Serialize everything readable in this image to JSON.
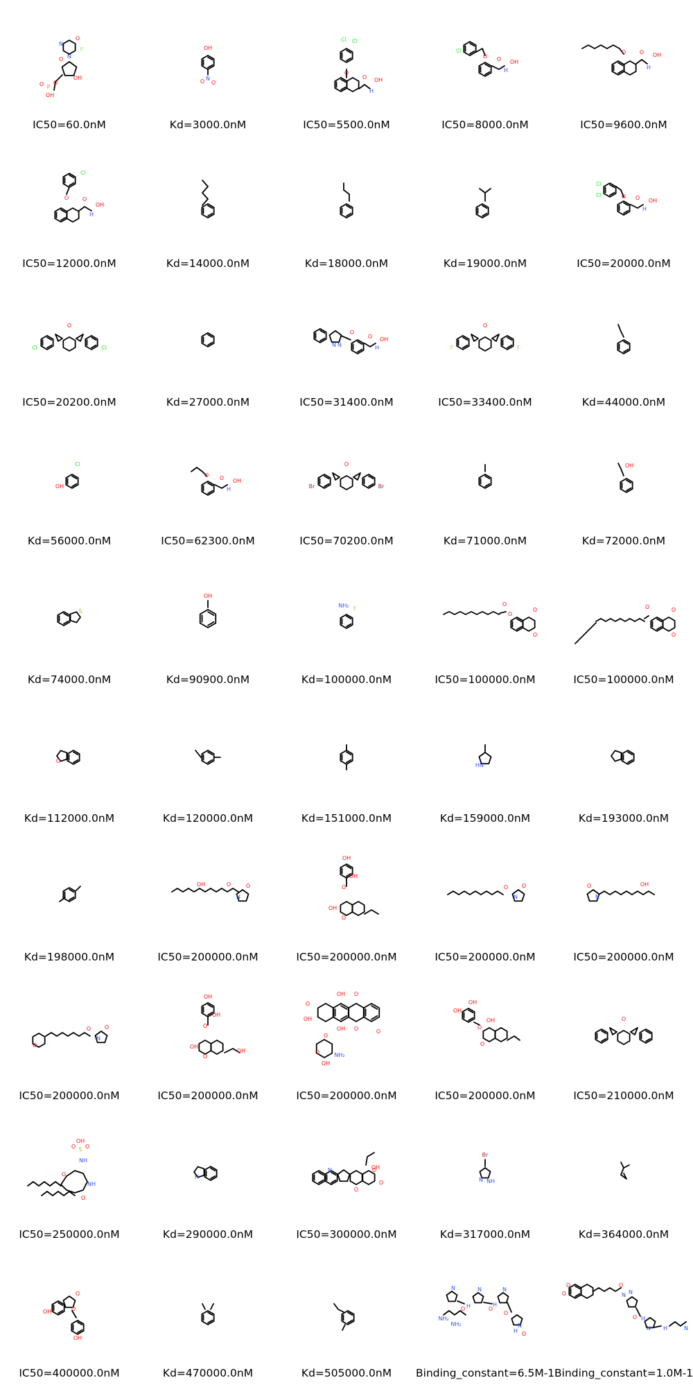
{
  "colors": {
    "oxygen": "#ff0d0d",
    "nitrogen": "#3050f8",
    "chlorine": "#1ff01f",
    "fluorine": "#90e050",
    "bromine": "#a62929",
    "sulfur": "#c8b400",
    "phosphorus": "#ff8000"
  },
  "cells": [
    {
      "label": "IC50=60.0nM",
      "mol": "nucleoside"
    },
    {
      "label": "Kd=3000.0nM",
      "mol": "nitrophenol"
    },
    {
      "label": "IC50=5500.0nM",
      "mol": "naphthyl_hydroxamate_dichloro"
    },
    {
      "label": "IC50=8000.0nM",
      "mol": "benzyl_hydroxamate_chloro"
    },
    {
      "label": "IC50=9600.0nM",
      "mol": "naphthyl_hydroxamate_hexyl"
    },
    {
      "label": "IC50=12000.0nM",
      "mol": "naphthyl_hydroxamate_chloro"
    },
    {
      "label": "Kd=14000.0nM",
      "mol": "butylbenzene"
    },
    {
      "label": "Kd=18000.0nM",
      "mol": "propylbenzene"
    },
    {
      "label": "Kd=19000.0nM",
      "mol": "isobutylbenzene"
    },
    {
      "label": "IC50=20000.0nM",
      "mol": "benzyl_hydroxamate_dichloro"
    },
    {
      "label": "IC50=20200.0nM",
      "mol": "bis_cyclopropyl_chloro"
    },
    {
      "label": "Kd=27000.0nM",
      "mol": "benzene"
    },
    {
      "label": "IC50=31400.0nM",
      "mol": "pyrazole_hydroxamate"
    },
    {
      "label": "IC50=33400.0nM",
      "mol": "bis_cyclopropyl_fluoro"
    },
    {
      "label": "Kd=44000.0nM",
      "mol": "ethylbenzene"
    },
    {
      "label": "Kd=56000.0nM",
      "mol": "chlorophenol"
    },
    {
      "label": "IC50=62300.0nM",
      "mol": "allyl_hydroxamate"
    },
    {
      "label": "IC50=70200.0nM",
      "mol": "bis_cyclopropyl_bromo"
    },
    {
      "label": "Kd=71000.0nM",
      "mol": "toluene"
    },
    {
      "label": "Kd=72000.0nM",
      "mol": "allylphenol"
    },
    {
      "label": "Kd=74000.0nM",
      "mol": "benzothiophene"
    },
    {
      "label": "Kd=90900.0nM",
      "mol": "phenol"
    },
    {
      "label": "Kd=100000.0nM",
      "mol": "fluoroaniline"
    },
    {
      "label": "IC50=100000.0nM",
      "mol": "naphthoquinone_ester_long"
    },
    {
      "label": "IC50=100000.0nM",
      "mol": "naphthoquinone_ester_oleyl"
    },
    {
      "label": "Kd=112000.0nM",
      "mol": "benzofuran"
    },
    {
      "label": "Kd=120000.0nM",
      "mol": "ethyltoluene_para"
    },
    {
      "label": "Kd=151000.0nM",
      "mol": "xylene_para"
    },
    {
      "label": "Kd=159000.0nM",
      "mol": "methylpyrrole"
    },
    {
      "label": "Kd=193000.0nM",
      "mol": "indene"
    },
    {
      "label": "Kd=198000.0nM",
      "mol": "ethyltoluene_meta"
    },
    {
      "label": "IC50=200000.0nM",
      "mol": "polyene_pyrrolidinone_a"
    },
    {
      "label": "IC50=200000.0nM",
      "mol": "depside_a"
    },
    {
      "label": "IC50=200000.0nM",
      "mol": "polyene_pyrrolidinone_b"
    },
    {
      "label": "IC50=200000.0nM",
      "mol": "polyene_pyrrolidinone_c"
    },
    {
      "label": "IC50=200000.0nM",
      "mol": "polyene_pyrrolidinone_d"
    },
    {
      "label": "IC50=200000.0nM",
      "mol": "depside_b"
    },
    {
      "label": "IC50=200000.0nM",
      "mol": "anthracycline"
    },
    {
      "label": "IC50=200000.0nM",
      "mol": "depside_c"
    },
    {
      "label": "IC50=210000.0nM",
      "mol": "bis_cyclopropyl_phenyl"
    },
    {
      "label": "IC50=250000.0nM",
      "mol": "macrocycle"
    },
    {
      "label": "Kd=290000.0nM",
      "mol": "indole"
    },
    {
      "label": "IC50=300000.0nM",
      "mol": "camptothecin"
    },
    {
      "label": "Kd=317000.0nM",
      "mol": "bromoimidazole"
    },
    {
      "label": "Kd=364000.0nM",
      "mol": "small_branched"
    },
    {
      "label": "IC50=400000.0nM",
      "mol": "aurone"
    },
    {
      "label": "Kd=470000.0nM",
      "mol": "xylene_ortho"
    },
    {
      "label": "Kd=505000.0nM",
      "mol": "ethyltoluene_ortho"
    },
    {
      "label": "Binding_constant=6.5M-1",
      "mol": "polyamide_a"
    },
    {
      "label": "Binding_constant=1.0M-1",
      "mol": "polyamide_b"
    }
  ]
}
